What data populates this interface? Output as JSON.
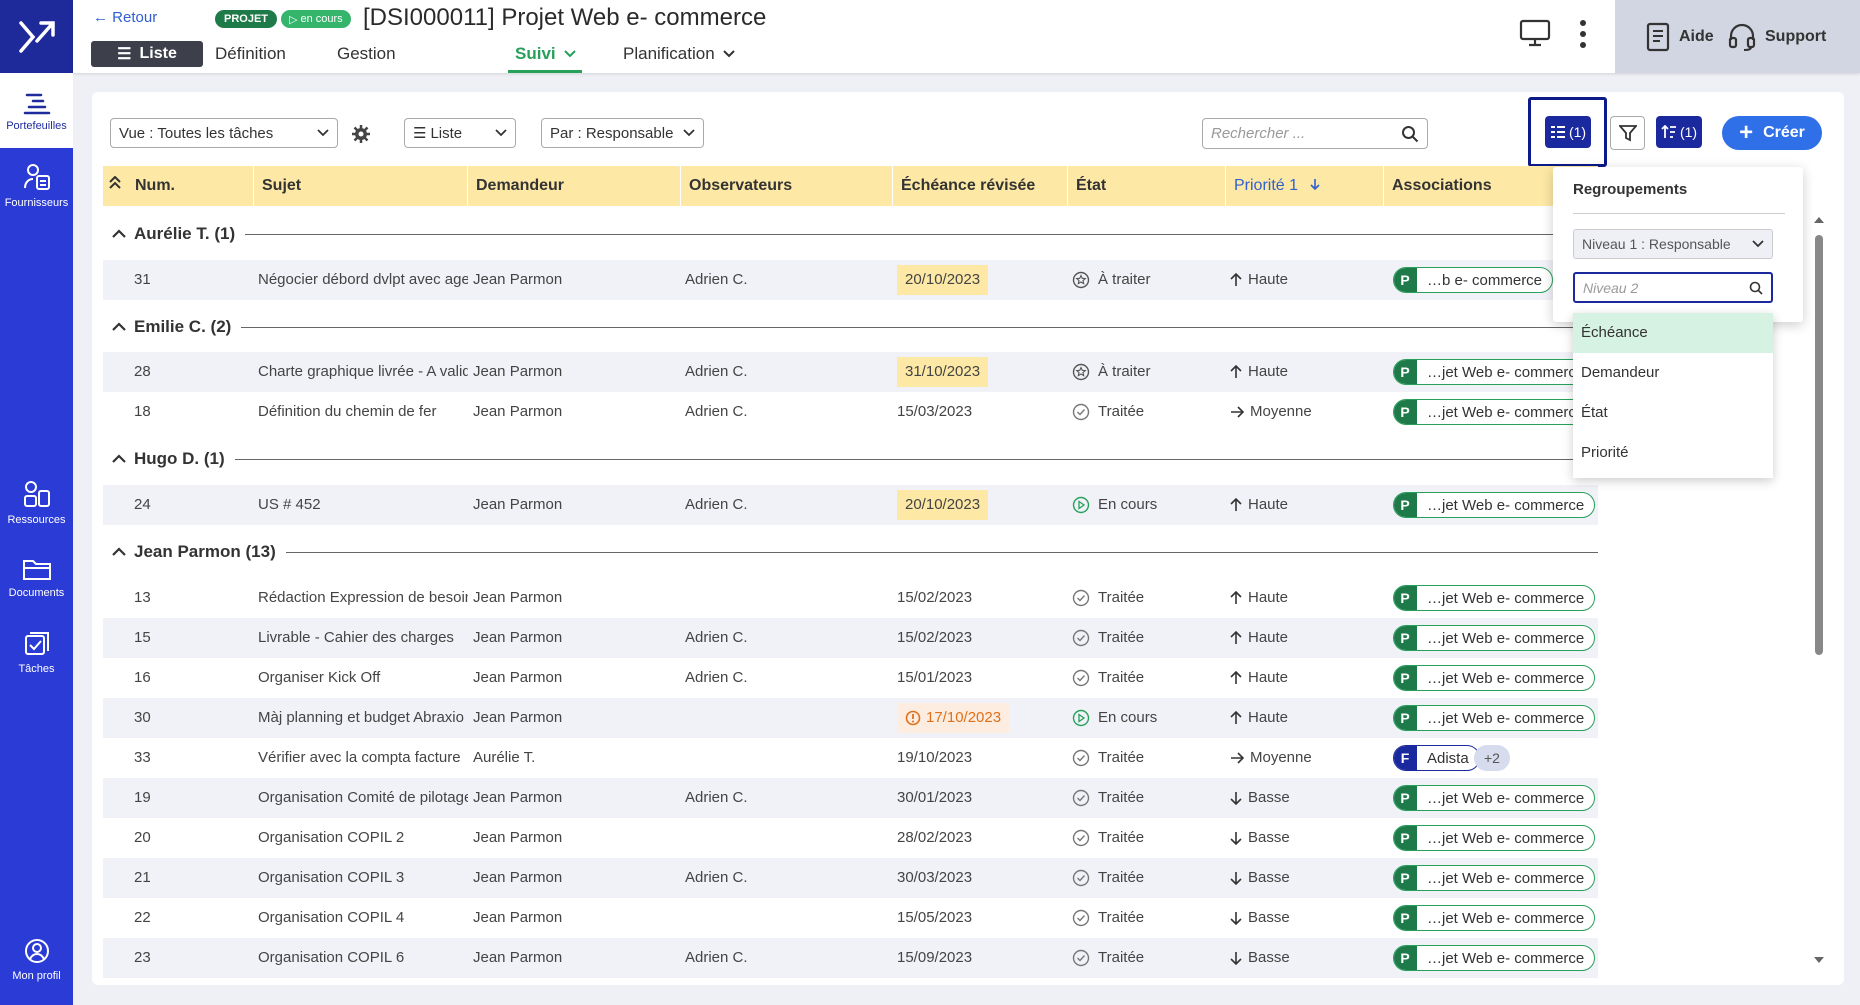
{
  "app": {
    "nav_items": [
      {
        "label": "Portefeuilles"
      },
      {
        "label": "Fournisseurs"
      },
      {
        "label": "Ressources"
      },
      {
        "label": "Documents"
      },
      {
        "label": "Tâches"
      },
      {
        "label": "Mon profil"
      }
    ]
  },
  "header": {
    "back_label": "Retour",
    "list_label": "Liste",
    "badge_type": "PROJET",
    "badge_status": "en cours",
    "title": "[DSI000011] Projet Web e- commerce",
    "tabs": [
      {
        "label": "Définition"
      },
      {
        "label": "Gestion"
      },
      {
        "label": "Suivi"
      },
      {
        "label": "Planification"
      }
    ],
    "help_label": "Aide",
    "support_label": "Support"
  },
  "toolbar": {
    "view_select": "Vue : Toutes les tâches",
    "display_select": "Liste",
    "group_select": "Par : Responsable",
    "search_placeholder": "Rechercher ...",
    "grouping_btn": "(1)",
    "sort_btn": "(1)",
    "create_label": "Créer"
  },
  "columns": [
    "Num.",
    "Sujet",
    "Demandeur",
    "Observateurs",
    "Échéance révisée",
    "État",
    "Priorité 1",
    "Associations"
  ],
  "groups": [
    {
      "title": "Aurélie T.",
      "count": "(1)"
    },
    {
      "title": "Emilie C.",
      "count": "(2)"
    },
    {
      "title": "Hugo D.",
      "count": "(1)"
    },
    {
      "title": "Jean Parmon",
      "count": "(13)"
    }
  ],
  "rows": [
    {
      "num": "31",
      "sujet": "Négocier débord dvlpt avec agence",
      "demandeur": "Jean Parmon",
      "observateurs": "Adrien C.",
      "echeance": "20/10/2023",
      "etat": "À traiter",
      "priorite": "Haute",
      "assoc_letter": "P",
      "assoc": "…b e- commerce"
    },
    {
      "num": "28",
      "sujet": "Charte graphique livrée - A valider",
      "demandeur": "Jean Parmon",
      "observateurs": "Adrien C.",
      "echeance": "31/10/2023",
      "etat": "À traiter",
      "priorite": "Haute",
      "assoc_letter": "P",
      "assoc": "…jet Web e- commerce"
    },
    {
      "num": "18",
      "sujet": "Définition du chemin de fer",
      "demandeur": "Jean Parmon",
      "observateurs": "Adrien C.",
      "echeance": "15/03/2023",
      "etat": "Traitée",
      "priorite": "Moyenne",
      "assoc_letter": "P",
      "assoc": "…jet Web e- commerce"
    },
    {
      "num": "24",
      "sujet": "US # 452",
      "demandeur": "Jean Parmon",
      "observateurs": "Adrien C.",
      "echeance": "20/10/2023",
      "etat": "En cours",
      "priorite": "Haute",
      "assoc_letter": "P",
      "assoc": "…jet Web e- commerce"
    },
    {
      "num": "13",
      "sujet": "Rédaction Expression de besoins",
      "demandeur": "Jean Parmon",
      "observateurs": "",
      "echeance": "15/02/2023",
      "etat": "Traitée",
      "priorite": "Haute",
      "assoc_letter": "P",
      "assoc": "…jet Web e- commerce"
    },
    {
      "num": "15",
      "sujet": "Livrable - Cahier des charges",
      "demandeur": "Jean Parmon",
      "observateurs": "Adrien C.",
      "echeance": "15/02/2023",
      "etat": "Traitée",
      "priorite": "Haute",
      "assoc_letter": "P",
      "assoc": "…jet Web e- commerce"
    },
    {
      "num": "16",
      "sujet": "Organiser Kick Off",
      "demandeur": "Jean Parmon",
      "observateurs": "Adrien C.",
      "echeance": "15/01/2023",
      "etat": "Traitée",
      "priorite": "Haute",
      "assoc_letter": "P",
      "assoc": "…jet Web e- commerce"
    },
    {
      "num": "30",
      "sujet": "Màj planning et budget Abraxio",
      "demandeur": "Jean Parmon",
      "observateurs": "",
      "echeance": "17/10/2023",
      "etat": "En cours",
      "priorite": "Haute",
      "assoc_letter": "P",
      "assoc": "…jet Web e- commerce"
    },
    {
      "num": "33",
      "sujet": "Vérifier avec la compta facture",
      "demandeur": "Aurélie T.",
      "observateurs": "",
      "echeance": "19/10/2023",
      "etat": "Traitée",
      "priorite": "Moyenne",
      "assoc_letter": "F",
      "assoc": "Adista",
      "assoc_extra": "+2"
    },
    {
      "num": "19",
      "sujet": "Organisation Comité de pilotage",
      "demandeur": "Jean Parmon",
      "observateurs": "Adrien C.",
      "echeance": "30/01/2023",
      "etat": "Traitée",
      "priorite": "Basse",
      "assoc_letter": "P",
      "assoc": "…jet Web e- commerce"
    },
    {
      "num": "20",
      "sujet": "Organisation COPIL 2",
      "demandeur": "Jean Parmon",
      "observateurs": "",
      "echeance": "28/02/2023",
      "etat": "Traitée",
      "priorite": "Basse",
      "assoc_letter": "P",
      "assoc": "…jet Web e- commerce"
    },
    {
      "num": "21",
      "sujet": "Organisation COPIL 3",
      "demandeur": "Jean Parmon",
      "observateurs": "Adrien C.",
      "echeance": "30/03/2023",
      "etat": "Traitée",
      "priorite": "Basse",
      "assoc_letter": "P",
      "assoc": "…jet Web e- commerce"
    },
    {
      "num": "22",
      "sujet": "Organisation COPIL 4",
      "demandeur": "Jean Parmon",
      "observateurs": "",
      "echeance": "15/05/2023",
      "etat": "Traitée",
      "priorite": "Basse",
      "assoc_letter": "P",
      "assoc": "…jet Web e- commerce"
    },
    {
      "num": "23",
      "sujet": "Organisation COPIL 6",
      "demandeur": "Jean Parmon",
      "observateurs": "Adrien C.",
      "echeance": "15/09/2023",
      "etat": "Traitée",
      "priorite": "Basse",
      "assoc_letter": "P",
      "assoc": "…jet Web e- commerce"
    }
  ],
  "regroupements": {
    "title": "Regroupements",
    "level1": "Niveau 1 : Responsable",
    "level2_placeholder": "Niveau 2",
    "options": [
      "Échéance",
      "Demandeur",
      "État",
      "Priorité"
    ]
  },
  "colors": {
    "accent": "#2b3bd6",
    "navy": "#1a2a9e",
    "green": "#27a05a",
    "header_yellow": "#fde9a5",
    "late": "#e0701a"
  }
}
